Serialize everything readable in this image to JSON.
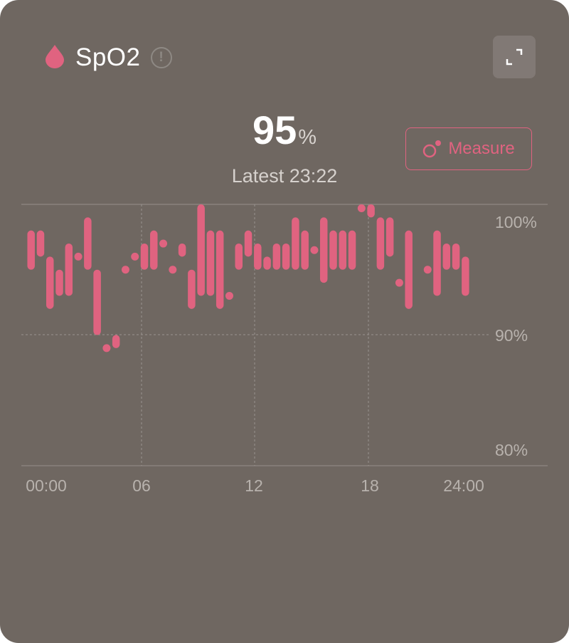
{
  "header": {
    "title": "SpO2",
    "icon": "blood-drop-icon",
    "info_icon": "exclamation-circle-icon",
    "expand_icon": "expand-icon"
  },
  "summary": {
    "value": "95",
    "unit": "%",
    "latest": "Latest 23:22"
  },
  "measure_button": {
    "label": "Measure",
    "icon": "measure-icon"
  },
  "colors": {
    "background": "#6f6761",
    "accent": "#e06380",
    "text_muted": "#b8b2ad"
  },
  "chart_data": {
    "type": "range-bar",
    "x_ticks": [
      "00:00",
      "06",
      "12",
      "18",
      "24:00"
    ],
    "y_ticks": [
      "100%",
      "90%",
      "80%"
    ],
    "ylim": [
      80,
      100
    ],
    "xlim_hours": [
      0,
      24
    ],
    "grid": true,
    "points": [
      {
        "time": "00:00",
        "min": 95,
        "max": 98
      },
      {
        "time": "00:30",
        "min": 96,
        "max": 98
      },
      {
        "time": "01:00",
        "min": 92,
        "max": 96
      },
      {
        "time": "01:30",
        "min": 93,
        "max": 95
      },
      {
        "time": "02:00",
        "min": 93,
        "max": 97
      },
      {
        "time": "02:30",
        "min": 96,
        "max": 96
      },
      {
        "time": "03:00",
        "min": 95,
        "max": 99
      },
      {
        "time": "03:30",
        "min": 90,
        "max": 95
      },
      {
        "time": "04:00",
        "min": 89,
        "max": 89
      },
      {
        "time": "04:30",
        "min": 89,
        "max": 90
      },
      {
        "time": "05:00",
        "min": 95,
        "max": 95
      },
      {
        "time": "05:30",
        "min": 96,
        "max": 96
      },
      {
        "time": "06:00",
        "min": 95,
        "max": 97
      },
      {
        "time": "06:30",
        "min": 95,
        "max": 98
      },
      {
        "time": "07:00",
        "min": 97,
        "max": 97
      },
      {
        "time": "07:30",
        "min": 95,
        "max": 95
      },
      {
        "time": "08:00",
        "min": 96,
        "max": 97
      },
      {
        "time": "08:30",
        "min": 92,
        "max": 95
      },
      {
        "time": "09:00",
        "min": 93,
        "max": 100
      },
      {
        "time": "09:30",
        "min": 93,
        "max": 98
      },
      {
        "time": "10:00",
        "min": 92,
        "max": 98
      },
      {
        "time": "10:30",
        "min": 93,
        "max": 93
      },
      {
        "time": "11:00",
        "min": 95,
        "max": 97
      },
      {
        "time": "11:30",
        "min": 96,
        "max": 98
      },
      {
        "time": "12:00",
        "min": 95,
        "max": 97
      },
      {
        "time": "12:30",
        "min": 95,
        "max": 96
      },
      {
        "time": "13:00",
        "min": 95,
        "max": 97
      },
      {
        "time": "13:30",
        "min": 95,
        "max": 97
      },
      {
        "time": "14:00",
        "min": 95,
        "max": 99
      },
      {
        "time": "14:30",
        "min": 95,
        "max": 98
      },
      {
        "time": "15:00",
        "min": 96.5,
        "max": 96.5
      },
      {
        "time": "15:30",
        "min": 94,
        "max": 99
      },
      {
        "time": "16:00",
        "min": 95,
        "max": 98
      },
      {
        "time": "16:30",
        "min": 95,
        "max": 98
      },
      {
        "time": "17:00",
        "min": 95,
        "max": 98
      },
      {
        "time": "17:30",
        "min": 99.7,
        "max": 99.7
      },
      {
        "time": "18:00",
        "min": 99,
        "max": 100
      },
      {
        "time": "18:30",
        "min": 95,
        "max": 99
      },
      {
        "time": "19:00",
        "min": 96,
        "max": 99
      },
      {
        "time": "19:30",
        "min": 94,
        "max": 94
      },
      {
        "time": "20:00",
        "min": 92,
        "max": 98
      },
      {
        "time": "21:00",
        "min": 95,
        "max": 95
      },
      {
        "time": "21:30",
        "min": 93,
        "max": 98
      },
      {
        "time": "22:00",
        "min": 95,
        "max": 97
      },
      {
        "time": "22:30",
        "min": 95,
        "max": 97
      },
      {
        "time": "23:00",
        "min": 93,
        "max": 96
      }
    ]
  }
}
